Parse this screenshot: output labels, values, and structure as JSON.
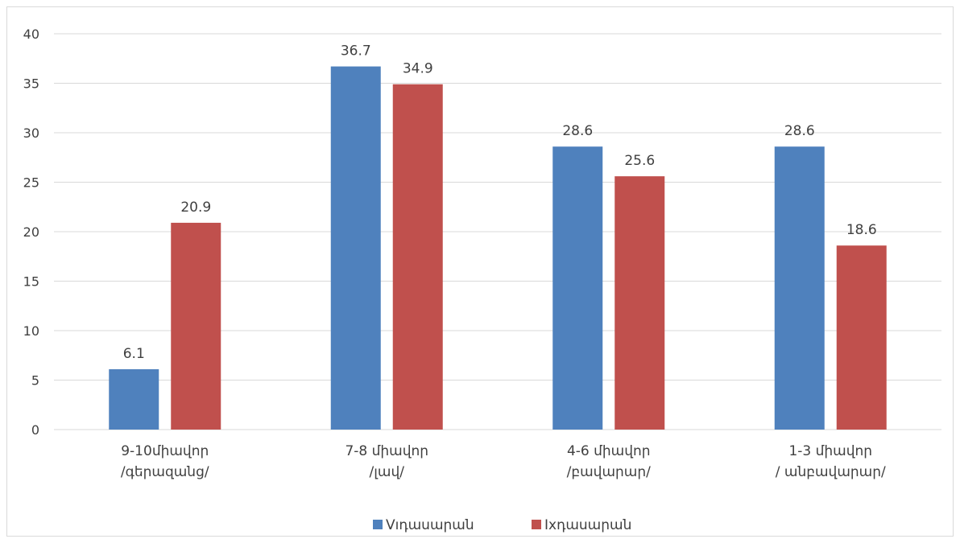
{
  "chart_data": {
    "type": "bar",
    "categories": [
      [
        "9-10միավոր",
        "/գերազանց/"
      ],
      [
        "7-8 միավոր",
        "/լավ/"
      ],
      [
        "4-6 միավոր",
        "/բավարար/"
      ],
      [
        "1-3 միավոր",
        "/ անբավարար/"
      ]
    ],
    "series": [
      {
        "name": "Vıդասարան",
        "color": "#4f81bd",
        "values": [
          6.1,
          36.7,
          28.6,
          28.6
        ],
        "labels": [
          "6.1",
          "36.7",
          "28.6",
          "28.6"
        ]
      },
      {
        "name": "Ixդասարան",
        "color": "#c0504d",
        "values": [
          20.9,
          34.9,
          25.6,
          18.6
        ],
        "labels": [
          "20.9",
          "34.9",
          "25.6",
          "18.6"
        ]
      }
    ],
    "ylim": [
      0,
      40
    ],
    "yticks": [
      "0",
      "5",
      "10",
      "15",
      "20",
      "25",
      "30",
      "35",
      "40"
    ],
    "grid": true,
    "gridColor": "#d9d9d9",
    "legend_position": "bottom"
  }
}
